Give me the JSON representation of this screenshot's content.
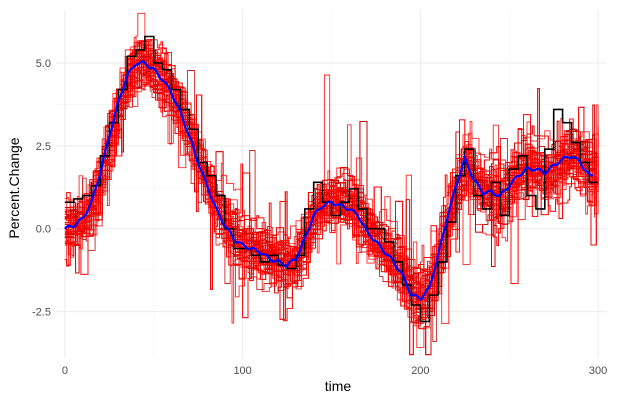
{
  "chart_data": {
    "type": "line",
    "title": "",
    "xlabel": "time",
    "ylabel": "Percent.Change",
    "xlim": [
      -5,
      305
    ],
    "ylim": [
      -3.9,
      6.6
    ],
    "x_ticks": [
      0,
      100,
      200,
      300
    ],
    "x_tick_labels": [
      "0",
      "100",
      "200",
      "300"
    ],
    "y_ticks": [
      -2.5,
      0,
      2.5,
      5
    ],
    "y_tick_labels": [
      "-2.5",
      "0.0",
      "2.5",
      "5.0"
    ],
    "grid": true,
    "legend": "none",
    "colors": {
      "samples": "#ff0000",
      "samples_dark": "#c00000",
      "observed": "#000000",
      "mean": "#0000ff"
    },
    "mean_curve": {
      "x": [
        0,
        5,
        10,
        15,
        20,
        25,
        30,
        35,
        40,
        45,
        50,
        55,
        60,
        65,
        70,
        75,
        80,
        85,
        90,
        95,
        100,
        105,
        110,
        115,
        120,
        125,
        130,
        135,
        140,
        145,
        150,
        155,
        160,
        165,
        170,
        175,
        180,
        185,
        190,
        195,
        200,
        205,
        210,
        215,
        220,
        225,
        230,
        235,
        240,
        245,
        250,
        255,
        260,
        265,
        270,
        275,
        280,
        285,
        290,
        295
      ],
      "y": [
        0.0,
        0.1,
        0.3,
        0.8,
        1.7,
        2.8,
        3.8,
        4.6,
        5.0,
        5.0,
        4.8,
        4.5,
        4.1,
        3.5,
        2.8,
        2.0,
        1.3,
        0.6,
        0.1,
        -0.3,
        -0.5,
        -0.6,
        -0.7,
        -0.9,
        -1.0,
        -1.1,
        -0.9,
        -0.3,
        0.4,
        0.7,
        0.8,
        0.7,
        0.6,
        0.4,
        -0.1,
        -0.4,
        -0.7,
        -1.0,
        -1.4,
        -2.0,
        -2.1,
        -1.8,
        -0.8,
        0.3,
        1.3,
        2.1,
        1.5,
        1.1,
        1.1,
        1.0,
        1.3,
        1.6,
        1.8,
        1.8,
        1.7,
        1.9,
        2.1,
        2.2,
        2.0,
        1.6
      ]
    },
    "observed_series": {
      "x": [
        0,
        5,
        10,
        15,
        20,
        25,
        30,
        35,
        40,
        45,
        50,
        55,
        60,
        65,
        70,
        75,
        80,
        85,
        90,
        95,
        100,
        105,
        110,
        115,
        120,
        125,
        130,
        135,
        140,
        145,
        150,
        155,
        160,
        165,
        170,
        175,
        180,
        185,
        190,
        195,
        200,
        205,
        210,
        215,
        220,
        225,
        230,
        235,
        240,
        245,
        250,
        255,
        260,
        265,
        270,
        275,
        280,
        285,
        290,
        295
      ],
      "y": [
        0.8,
        0.9,
        1.0,
        1.3,
        2.2,
        3.2,
        4.2,
        5.2,
        5.4,
        5.8,
        5.0,
        4.8,
        4.2,
        3.6,
        3.0,
        2.0,
        1.6,
        1.0,
        0.0,
        -0.6,
        -0.6,
        -0.8,
        -1.0,
        -0.8,
        -1.1,
        -1.2,
        -0.8,
        0.6,
        1.4,
        0.8,
        0.4,
        0.8,
        1.2,
        0.6,
        0.0,
        0.0,
        -0.4,
        -1.0,
        -1.7,
        -2.3,
        -2.8,
        -2.0,
        -1.0,
        0.2,
        1.6,
        2.4,
        1.0,
        0.6,
        1.4,
        0.4,
        1.8,
        2.2,
        1.0,
        0.6,
        2.4,
        3.6,
        3.2,
        2.6,
        2.0,
        1.4
      ]
    }
  }
}
